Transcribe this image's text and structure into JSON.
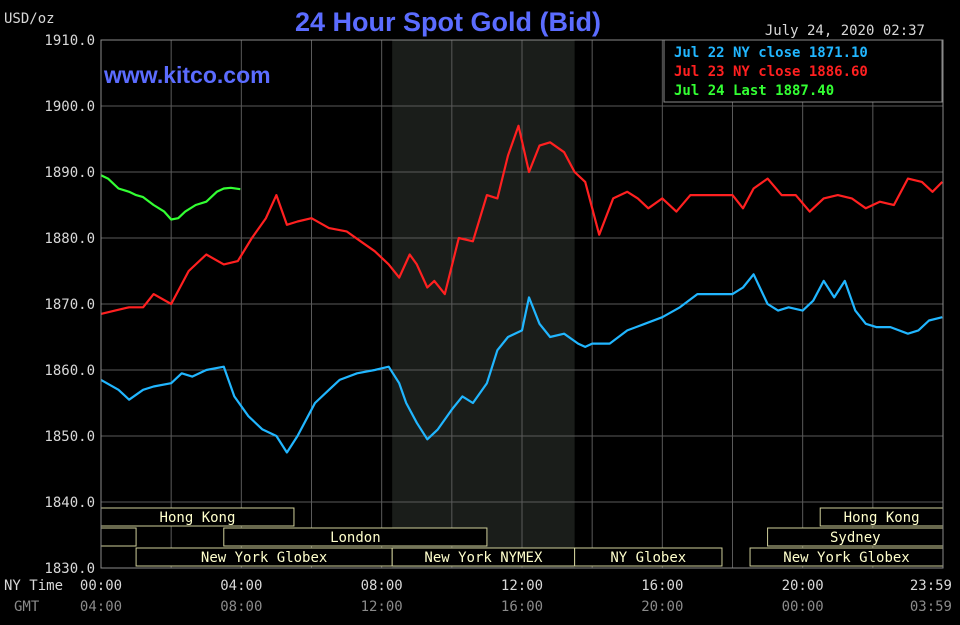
{
  "chart_data": {
    "type": "line",
    "title": "24 Hour Spot Gold (Bid)",
    "watermark": "www.kitco.com",
    "unit_label": "USD/oz",
    "timestamp": "July 24, 2020 02:37",
    "ylim": [
      1830,
      1910
    ],
    "y_ticks": [
      "1910.0",
      "1900.0",
      "1890.0",
      "1880.0",
      "1870.0",
      "1860.0",
      "1850.0",
      "1840.0",
      "1830.0"
    ],
    "x_range_hours": [
      0,
      24
    ],
    "x_axis_rows": [
      {
        "label": "NY Time",
        "ticks": [
          "00:00",
          "04:00",
          "08:00",
          "12:00",
          "16:00",
          "20:00",
          "23:59"
        ]
      },
      {
        "label": "GMT",
        "ticks": [
          "04:00",
          "08:00",
          "12:00",
          "16:00",
          "20:00",
          "00:00",
          "03:59"
        ]
      }
    ],
    "legend": [
      {
        "text": "Jul 22 NY close 1871.10",
        "color": "#21b6ff"
      },
      {
        "text": "Jul 23 NY close 1886.60",
        "color": "#ff2020"
      },
      {
        "text": "Jul 24 Last 1887.40",
        "color": "#33ff33"
      }
    ],
    "grid": true,
    "legend_placement": "top-right",
    "highlight_band_hours": [
      8.3,
      13.5
    ],
    "markets": [
      {
        "name": "Hong Kong",
        "row": 0,
        "start": 0,
        "end": 5.5
      },
      {
        "name": "Hong Kong",
        "row": 0,
        "start": 20.5,
        "end": 24
      },
      {
        "name": "",
        "row": 1,
        "start": 0,
        "end": 1
      },
      {
        "name": "London",
        "row": 1,
        "start": 3.5,
        "end": 11
      },
      {
        "name": "Sydney",
        "row": 1,
        "start": 19,
        "end": 24
      },
      {
        "name": "New York Globex",
        "row": 2,
        "start": 1,
        "end": 8.3
      },
      {
        "name": "New York NYMEX",
        "row": 2,
        "start": 8.3,
        "end": 13.5
      },
      {
        "name": "NY Globex",
        "row": 2,
        "start": 13.5,
        "end": 17.7
      },
      {
        "name": "New York Globex",
        "row": 2,
        "start": 18.5,
        "end": 24
      }
    ],
    "series": [
      {
        "name": "Jul 22",
        "color": "#21b6ff",
        "x": [
          0,
          0.5,
          0.8,
          1.2,
          1.5,
          2,
          2.3,
          2.6,
          3,
          3.5,
          3.8,
          4.2,
          4.6,
          5,
          5.3,
          5.6,
          5.9,
          6.1,
          6.5,
          6.8,
          7.3,
          7.8,
          8.2,
          8.5,
          8.7,
          9,
          9.3,
          9.6,
          10,
          10.3,
          10.6,
          11,
          11.3,
          11.6,
          12,
          12.2,
          12.5,
          12.8,
          13.2,
          13.6,
          13.8,
          14,
          14.5,
          15,
          15.5,
          16,
          16.5,
          17,
          17.5,
          18,
          18.3,
          18.6,
          19,
          19.3,
          19.6,
          20,
          20.3,
          20.6,
          20.9,
          21.2,
          21.5,
          21.8,
          22.1,
          22.5,
          23,
          23.3,
          23.6,
          23.98
        ],
        "y": [
          1858.5,
          1857,
          1855.5,
          1857,
          1857.5,
          1858,
          1859.5,
          1859,
          1860,
          1860.5,
          1856,
          1853,
          1851,
          1850,
          1847.5,
          1850,
          1853,
          1855,
          1857,
          1858.5,
          1859.5,
          1860,
          1860.5,
          1858,
          1855,
          1852,
          1849.5,
          1851,
          1854,
          1856,
          1855,
          1858,
          1863,
          1865,
          1866,
          1871,
          1867,
          1865,
          1865.5,
          1864,
          1863.5,
          1864,
          1864,
          1866,
          1867,
          1868,
          1869.5,
          1871.5,
          1871.5,
          1871.5,
          1872.5,
          1874.5,
          1870,
          1869,
          1869.5,
          1869,
          1870.5,
          1873.5,
          1871,
          1873.5,
          1869,
          1867,
          1866.5,
          1866.5,
          1865.5,
          1866,
          1867.5,
          1868
        ]
      },
      {
        "name": "Jul 23",
        "color": "#ff2020",
        "x": [
          0,
          0.4,
          0.8,
          1.2,
          1.5,
          2,
          2.5,
          3,
          3.5,
          3.9,
          4.3,
          4.7,
          5,
          5.3,
          5.6,
          6,
          6.5,
          7,
          7.4,
          7.8,
          8.2,
          8.5,
          8.8,
          9,
          9.3,
          9.5,
          9.8,
          10.2,
          10.6,
          11,
          11.3,
          11.6,
          11.9,
          12.2,
          12.5,
          12.8,
          13.2,
          13.5,
          13.8,
          14.2,
          14.6,
          15,
          15.3,
          15.6,
          16,
          16.4,
          16.8,
          17.2,
          17.6,
          18,
          18.3,
          18.6,
          19,
          19.4,
          19.8,
          20.2,
          20.6,
          21,
          21.4,
          21.8,
          22.2,
          22.6,
          23,
          23.4,
          23.7,
          23.98
        ],
        "y": [
          1868.5,
          1869,
          1869.5,
          1869.5,
          1871.5,
          1870,
          1875,
          1877.5,
          1876,
          1876.5,
          1880,
          1883,
          1886.5,
          1882,
          1882.5,
          1883,
          1881.5,
          1881,
          1879.5,
          1878,
          1876,
          1874,
          1877.5,
          1876,
          1872.5,
          1873.5,
          1871.5,
          1880,
          1879.5,
          1886.5,
          1886,
          1892.5,
          1897,
          1890,
          1894,
          1894.5,
          1893,
          1890,
          1888.5,
          1880.5,
          1886,
          1887,
          1886,
          1884.5,
          1886,
          1884,
          1886.5,
          1886.5,
          1886.5,
          1886.5,
          1884.5,
          1887.5,
          1889,
          1886.5,
          1886.5,
          1884,
          1886,
          1886.5,
          1886,
          1884.5,
          1885.5,
          1885,
          1889,
          1888.5,
          1887,
          1888.5
        ]
      },
      {
        "name": "Jul 24",
        "color": "#33ff33",
        "x": [
          0,
          0.2,
          0.5,
          0.8,
          1.0,
          1.2,
          1.5,
          1.8,
          2.0,
          2.2,
          2.4,
          2.7,
          3.0,
          3.3,
          3.5,
          3.7,
          3.97
        ],
        "y": [
          1889.5,
          1889,
          1887.5,
          1887,
          1886.5,
          1886.2,
          1885,
          1884,
          1882.8,
          1883,
          1884,
          1885,
          1885.5,
          1887,
          1887.5,
          1887.6,
          1887.4
        ]
      }
    ]
  }
}
